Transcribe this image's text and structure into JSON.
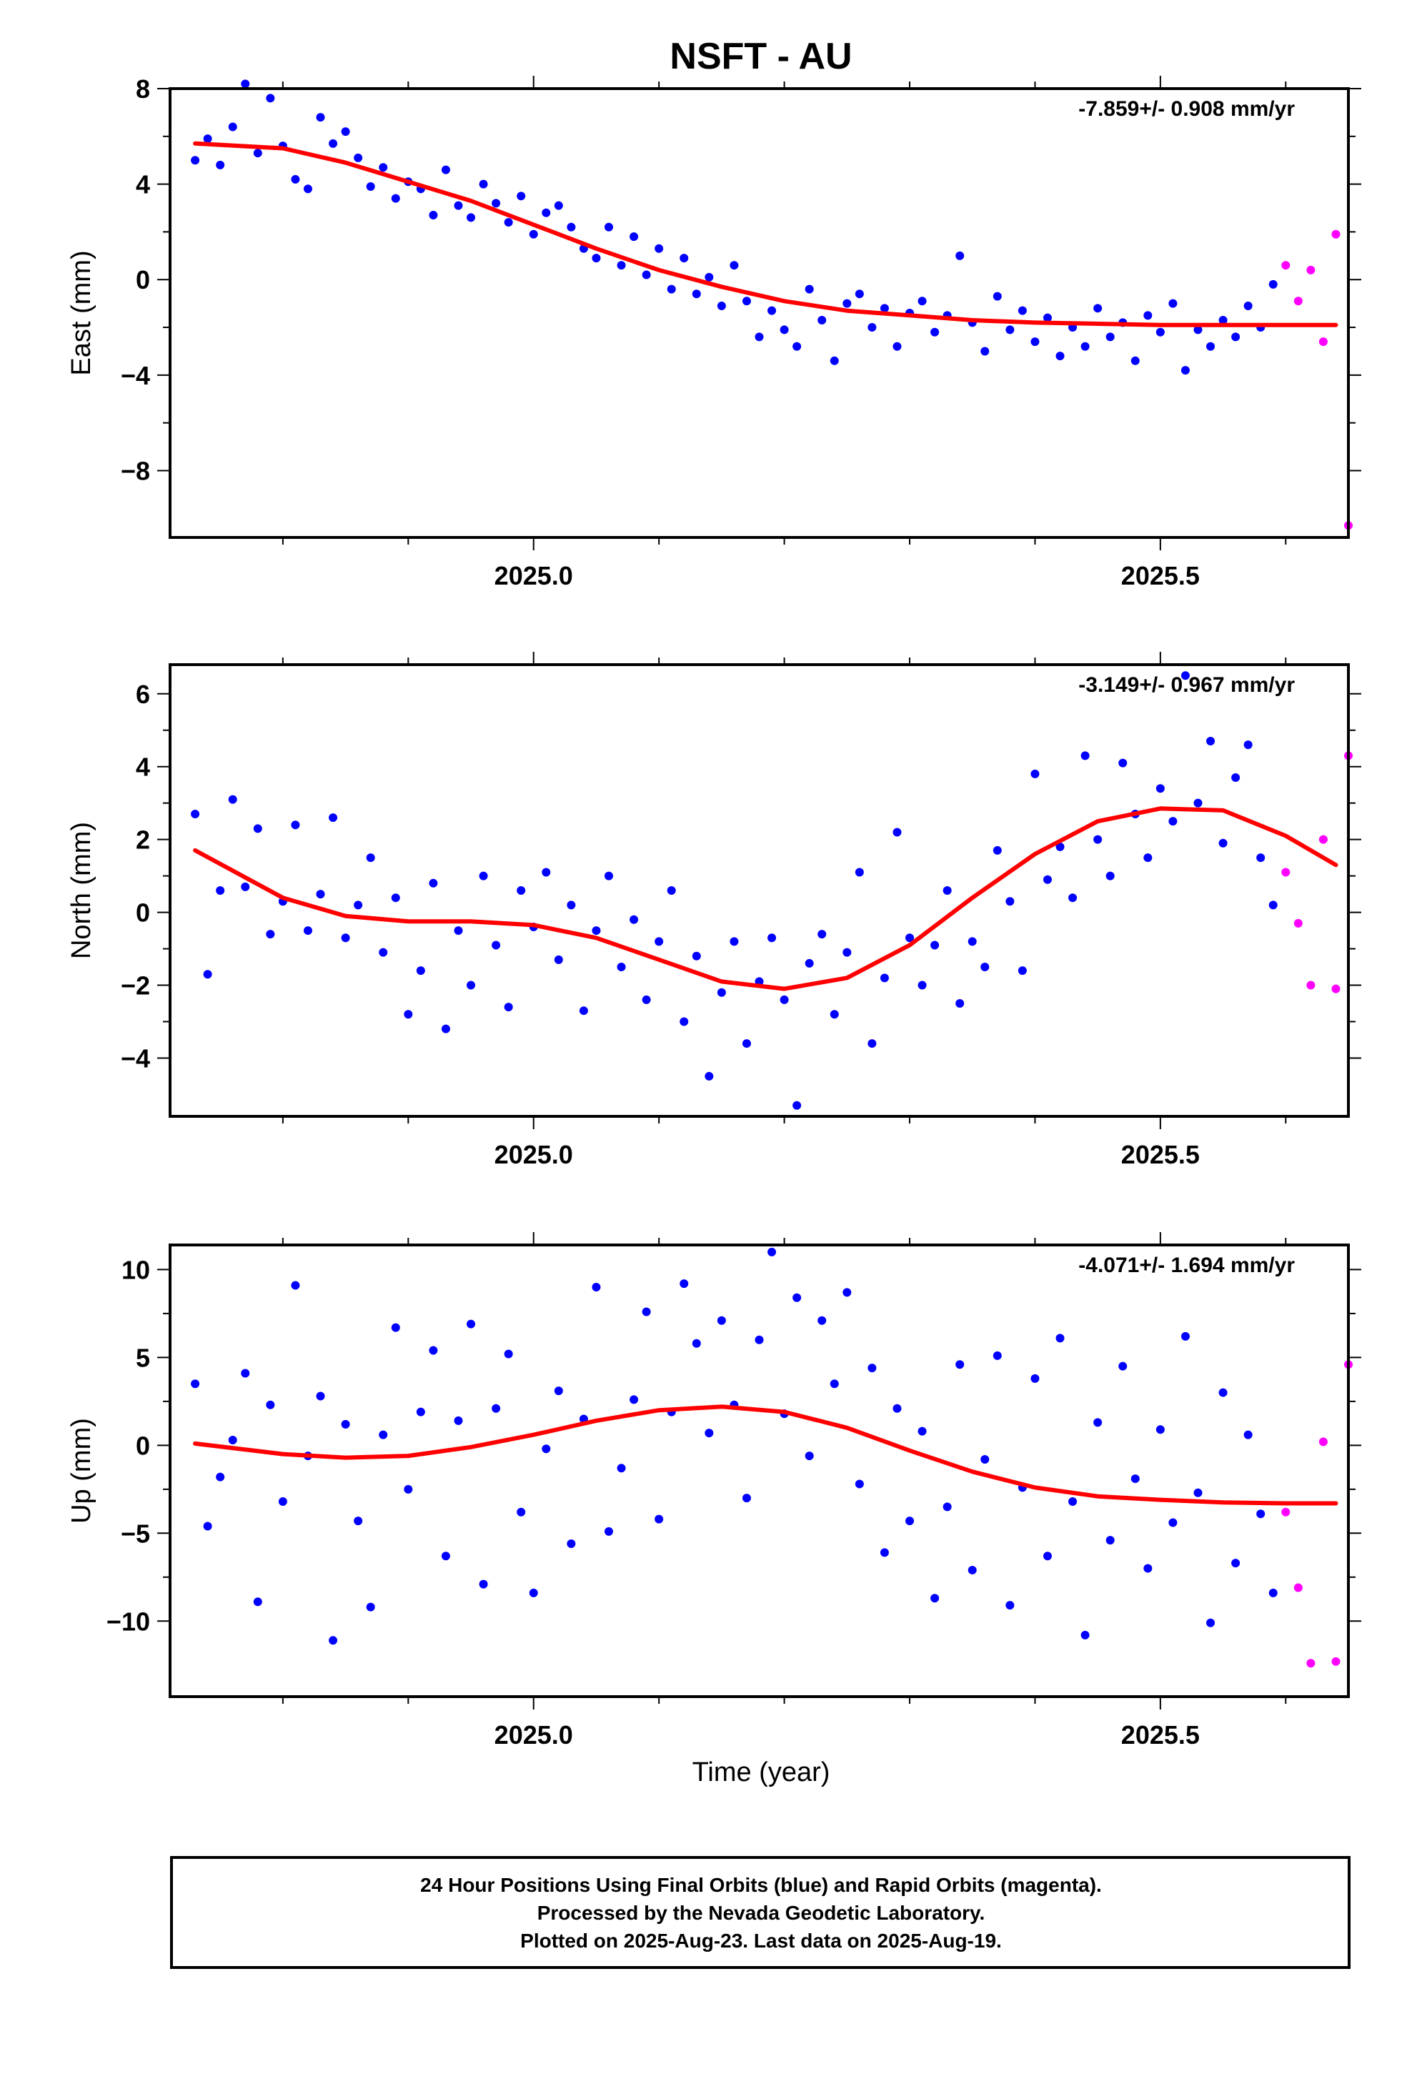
{
  "title": "NSFT - AU",
  "xlabel": "Time (year)",
  "footer": [
    "24 Hour Positions Using Final Orbits (blue) and Rapid Orbits (magenta).",
    "Processed by the Nevada Geodetic Laboratory.",
    "Plotted on 2025-Aug-23. Last data on 2025-Aug-19."
  ],
  "colors": {
    "final": "#0000ff",
    "rapid": "#ff00ff",
    "fit": "#ff0000",
    "frame": "#000000"
  },
  "chart_data": [
    {
      "type": "scatter",
      "name": "east",
      "ylabel": "East (mm)",
      "rate": "-7.859+/- 0.908 mm/yr",
      "xlim": [
        2024.71,
        2025.65
      ],
      "ylim": [
        -10.8,
        8.0
      ],
      "yticks": [
        8,
        4,
        0,
        -4,
        -8
      ],
      "yticklabels": [
        "8",
        "4",
        "0",
        "−4",
        "−8"
      ],
      "xticks": [
        2025.0,
        2025.5
      ],
      "xticklabels": [
        "2025.0",
        "2025.5"
      ],
      "fit": {
        "x": [
          2024.73,
          2024.8,
          2024.85,
          2024.9,
          2024.95,
          2025.0,
          2025.05,
          2025.1,
          2025.15,
          2025.2,
          2025.25,
          2025.3,
          2025.35,
          2025.4,
          2025.45,
          2025.5,
          2025.55,
          2025.6,
          2025.64
        ],
        "y": [
          5.7,
          5.5,
          4.9,
          4.1,
          3.3,
          2.3,
          1.3,
          0.4,
          -0.3,
          -0.9,
          -1.3,
          -1.5,
          -1.7,
          -1.8,
          -1.85,
          -1.9,
          -1.9,
          -1.9,
          -1.9
        ]
      },
      "series": [
        {
          "name": "final",
          "x": [
            2024.73,
            2024.74,
            2024.75,
            2024.76,
            2024.77,
            2024.78,
            2024.79,
            2024.8,
            2024.81,
            2024.82,
            2024.83,
            2024.84,
            2024.85,
            2024.86,
            2024.87,
            2024.88,
            2024.89,
            2024.9,
            2024.91,
            2024.92,
            2024.93,
            2024.94,
            2024.95,
            2024.96,
            2024.97,
            2024.98,
            2024.99,
            2025.0,
            2025.01,
            2025.02,
            2025.03,
            2025.04,
            2025.05,
            2025.06,
            2025.07,
            2025.08,
            2025.09,
            2025.1,
            2025.11,
            2025.12,
            2025.13,
            2025.14,
            2025.15,
            2025.16,
            2025.17,
            2025.18,
            2025.19,
            2025.2,
            2025.21,
            2025.22,
            2025.23,
            2025.24,
            2025.25,
            2025.26,
            2025.27,
            2025.28,
            2025.29,
            2025.3,
            2025.31,
            2025.32,
            2025.33,
            2025.34,
            2025.35,
            2025.36,
            2025.37,
            2025.38,
            2025.39,
            2025.4,
            2025.41,
            2025.42,
            2025.43,
            2025.44,
            2025.45,
            2025.46,
            2025.47,
            2025.48,
            2025.49,
            2025.5,
            2025.51,
            2025.52,
            2025.53,
            2025.54,
            2025.55,
            2025.56,
            2025.57,
            2025.58,
            2025.59
          ],
          "y": [
            5.0,
            5.9,
            4.8,
            6.4,
            8.2,
            5.3,
            7.6,
            5.6,
            4.2,
            3.8,
            6.8,
            5.7,
            6.2,
            5.1,
            3.9,
            4.7,
            3.4,
            4.1,
            3.8,
            2.7,
            4.6,
            3.1,
            2.6,
            4.0,
            3.2,
            2.4,
            3.5,
            1.9,
            2.8,
            3.1,
            2.2,
            1.3,
            0.9,
            2.2,
            0.6,
            1.8,
            0.2,
            1.3,
            -0.4,
            0.9,
            -0.6,
            0.1,
            -1.1,
            0.6,
            -0.9,
            -2.4,
            -1.3,
            -2.1,
            -2.8,
            -0.4,
            -1.7,
            -3.4,
            -1.0,
            -0.6,
            -2.0,
            -1.2,
            -2.8,
            -1.4,
            -0.9,
            -2.2,
            -1.5,
            1.0,
            -1.8,
            -3.0,
            -0.7,
            -2.1,
            -1.3,
            -2.6,
            -1.6,
            -3.2,
            -2.0,
            -2.8,
            -1.2,
            -2.4,
            -1.8,
            -3.4,
            -1.5,
            -2.2,
            -1.0,
            -3.8,
            -2.1,
            -2.8,
            -1.7,
            -2.4,
            -1.1,
            -2.0,
            -0.2
          ]
        },
        {
          "name": "rapid",
          "x": [
            2025.6,
            2025.61,
            2025.62,
            2025.63,
            2025.64,
            2025.65
          ],
          "y": [
            0.6,
            -0.9,
            0.4,
            -2.6,
            1.9,
            -10.3
          ]
        }
      ]
    },
    {
      "type": "scatter",
      "name": "north",
      "ylabel": "North (mm)",
      "rate": "-3.149+/- 0.967 mm/yr",
      "xlim": [
        2024.71,
        2025.65
      ],
      "ylim": [
        -5.6,
        6.8
      ],
      "yticks": [
        6,
        4,
        2,
        0,
        -2,
        -4
      ],
      "yticklabels": [
        "6",
        "4",
        "2",
        "0",
        "−2",
        "−4"
      ],
      "xticks": [
        2025.0,
        2025.5
      ],
      "xticklabels": [
        "2025.0",
        "2025.5"
      ],
      "fit": {
        "x": [
          2024.73,
          2024.8,
          2024.85,
          2024.9,
          2024.95,
          2025.0,
          2025.05,
          2025.1,
          2025.15,
          2025.2,
          2025.25,
          2025.3,
          2025.35,
          2025.4,
          2025.45,
          2025.5,
          2025.55,
          2025.6,
          2025.64
        ],
        "y": [
          1.7,
          0.4,
          -0.1,
          -0.25,
          -0.25,
          -0.35,
          -0.7,
          -1.3,
          -1.9,
          -2.1,
          -1.8,
          -0.9,
          0.4,
          1.6,
          2.5,
          2.85,
          2.8,
          2.1,
          1.3
        ]
      },
      "series": [
        {
          "name": "final",
          "x": [
            2024.73,
            2024.74,
            2024.75,
            2024.76,
            2024.77,
            2024.78,
            2024.79,
            2024.8,
            2024.81,
            2024.82,
            2024.83,
            2024.84,
            2024.85,
            2024.86,
            2024.87,
            2024.88,
            2024.89,
            2024.9,
            2024.91,
            2024.92,
            2024.93,
            2024.94,
            2024.95,
            2024.96,
            2024.97,
            2024.98,
            2024.99,
            2025.0,
            2025.01,
            2025.02,
            2025.03,
            2025.04,
            2025.05,
            2025.06,
            2025.07,
            2025.08,
            2025.09,
            2025.1,
            2025.11,
            2025.12,
            2025.13,
            2025.14,
            2025.15,
            2025.16,
            2025.17,
            2025.18,
            2025.19,
            2025.2,
            2025.21,
            2025.22,
            2025.23,
            2025.24,
            2025.25,
            2025.26,
            2025.27,
            2025.28,
            2025.29,
            2025.3,
            2025.31,
            2025.32,
            2025.33,
            2025.34,
            2025.35,
            2025.36,
            2025.37,
            2025.38,
            2025.39,
            2025.4,
            2025.41,
            2025.42,
            2025.43,
            2025.44,
            2025.45,
            2025.46,
            2025.47,
            2025.48,
            2025.49,
            2025.5,
            2025.51,
            2025.52,
            2025.53,
            2025.54,
            2025.55,
            2025.56,
            2025.57,
            2025.58,
            2025.59
          ],
          "y": [
            2.7,
            -1.7,
            0.6,
            3.1,
            0.7,
            2.3,
            -0.6,
            0.3,
            2.4,
            -0.5,
            0.5,
            2.6,
            -0.7,
            0.2,
            1.5,
            -1.1,
            0.4,
            -2.8,
            -1.6,
            0.8,
            -3.2,
            -0.5,
            -2.0,
            1.0,
            -0.9,
            -2.6,
            0.6,
            -0.4,
            1.1,
            -1.3,
            0.2,
            -2.7,
            -0.5,
            1.0,
            -1.5,
            -0.2,
            -2.4,
            -0.8,
            0.6,
            -3.0,
            -1.2,
            -4.5,
            -2.2,
            -0.8,
            -3.6,
            -1.9,
            -0.7,
            -2.4,
            -5.3,
            -1.4,
            -0.6,
            -2.8,
            -1.1,
            1.1,
            -3.6,
            -1.8,
            2.2,
            -0.7,
            -2.0,
            -0.9,
            0.6,
            -2.5,
            -0.8,
            -1.5,
            1.7,
            0.3,
            -1.6,
            3.8,
            0.9,
            1.8,
            0.4,
            4.3,
            2.0,
            1.0,
            4.1,
            2.7,
            1.5,
            3.4,
            2.5,
            6.5,
            3.0,
            4.7,
            1.9,
            3.7,
            4.6,
            1.5,
            0.2
          ]
        },
        {
          "name": "rapid",
          "x": [
            2025.6,
            2025.61,
            2025.62,
            2025.63,
            2025.64,
            2025.65
          ],
          "y": [
            1.1,
            -0.3,
            -2.0,
            2.0,
            -2.1,
            4.3
          ]
        }
      ]
    },
    {
      "type": "scatter",
      "name": "up",
      "ylabel": "Up (mm)",
      "rate": "-4.071+/- 1.694 mm/yr",
      "xlim": [
        2024.71,
        2025.65
      ],
      "ylim": [
        -14.3,
        11.4
      ],
      "yticks": [
        10,
        5,
        0,
        -5,
        -10
      ],
      "yticklabels": [
        "10",
        "5",
        "0",
        "−5",
        "−10"
      ],
      "xticks": [
        2025.0,
        2025.5
      ],
      "xticklabels": [
        "2025.0",
        "2025.5"
      ],
      "fit": {
        "x": [
          2024.73,
          2024.8,
          2024.85,
          2024.9,
          2024.95,
          2025.0,
          2025.05,
          2025.1,
          2025.15,
          2025.2,
          2025.25,
          2025.3,
          2025.35,
          2025.4,
          2025.45,
          2025.5,
          2025.55,
          2025.6,
          2025.64
        ],
        "y": [
          0.1,
          -0.5,
          -0.7,
          -0.6,
          -0.1,
          0.6,
          1.4,
          2.0,
          2.2,
          1.9,
          1.0,
          -0.3,
          -1.5,
          -2.4,
          -2.9,
          -3.1,
          -3.25,
          -3.3,
          -3.3
        ]
      },
      "series": [
        {
          "name": "final",
          "x": [
            2024.73,
            2024.74,
            2024.75,
            2024.76,
            2024.77,
            2024.78,
            2024.79,
            2024.8,
            2024.81,
            2024.82,
            2024.83,
            2024.84,
            2024.85,
            2024.86,
            2024.87,
            2024.88,
            2024.89,
            2024.9,
            2024.91,
            2024.92,
            2024.93,
            2024.94,
            2024.95,
            2024.96,
            2024.97,
            2024.98,
            2024.99,
            2025.0,
            2025.01,
            2025.02,
            2025.03,
            2025.04,
            2025.05,
            2025.06,
            2025.07,
            2025.08,
            2025.09,
            2025.1,
            2025.11,
            2025.12,
            2025.13,
            2025.14,
            2025.15,
            2025.16,
            2025.17,
            2025.18,
            2025.19,
            2025.2,
            2025.21,
            2025.22,
            2025.23,
            2025.24,
            2025.25,
            2025.26,
            2025.27,
            2025.28,
            2025.29,
            2025.3,
            2025.31,
            2025.32,
            2025.33,
            2025.34,
            2025.35,
            2025.36,
            2025.37,
            2025.38,
            2025.39,
            2025.4,
            2025.41,
            2025.42,
            2025.43,
            2025.44,
            2025.45,
            2025.46,
            2025.47,
            2025.48,
            2025.49,
            2025.5,
            2025.51,
            2025.52,
            2025.53,
            2025.54,
            2025.55,
            2025.56,
            2025.57,
            2025.58,
            2025.59
          ],
          "y": [
            3.5,
            -4.6,
            -1.8,
            0.3,
            4.1,
            -8.9,
            2.3,
            -3.2,
            9.1,
            -0.6,
            2.8,
            -11.1,
            1.2,
            -4.3,
            -9.2,
            0.6,
            6.7,
            -2.5,
            1.9,
            5.4,
            -6.3,
            1.4,
            6.9,
            -7.9,
            2.1,
            5.2,
            -3.8,
            -8.4,
            -0.2,
            3.1,
            -5.6,
            1.5,
            9.0,
            -4.9,
            -1.3,
            2.6,
            7.6,
            -4.2,
            1.9,
            9.2,
            5.8,
            0.7,
            7.1,
            2.3,
            -3.0,
            6.0,
            11.0,
            1.8,
            8.4,
            -0.6,
            7.1,
            3.5,
            8.7,
            -2.2,
            4.4,
            -6.1,
            2.1,
            -4.3,
            0.8,
            -8.7,
            -3.5,
            4.6,
            -7.1,
            -0.8,
            5.1,
            -9.1,
            -2.4,
            3.8,
            -6.3,
            6.1,
            -3.2,
            -10.8,
            1.3,
            -5.4,
            4.5,
            -1.9,
            -7.0,
            0.9,
            -4.4,
            6.2,
            -2.7,
            -10.1,
            3.0,
            -6.7,
            0.6,
            -3.9,
            -8.4
          ]
        },
        {
          "name": "rapid",
          "x": [
            2025.6,
            2025.61,
            2025.62,
            2025.63,
            2025.64,
            2025.65
          ],
          "y": [
            -3.8,
            -8.1,
            -12.4,
            0.2,
            -12.3,
            4.6
          ]
        }
      ]
    }
  ]
}
